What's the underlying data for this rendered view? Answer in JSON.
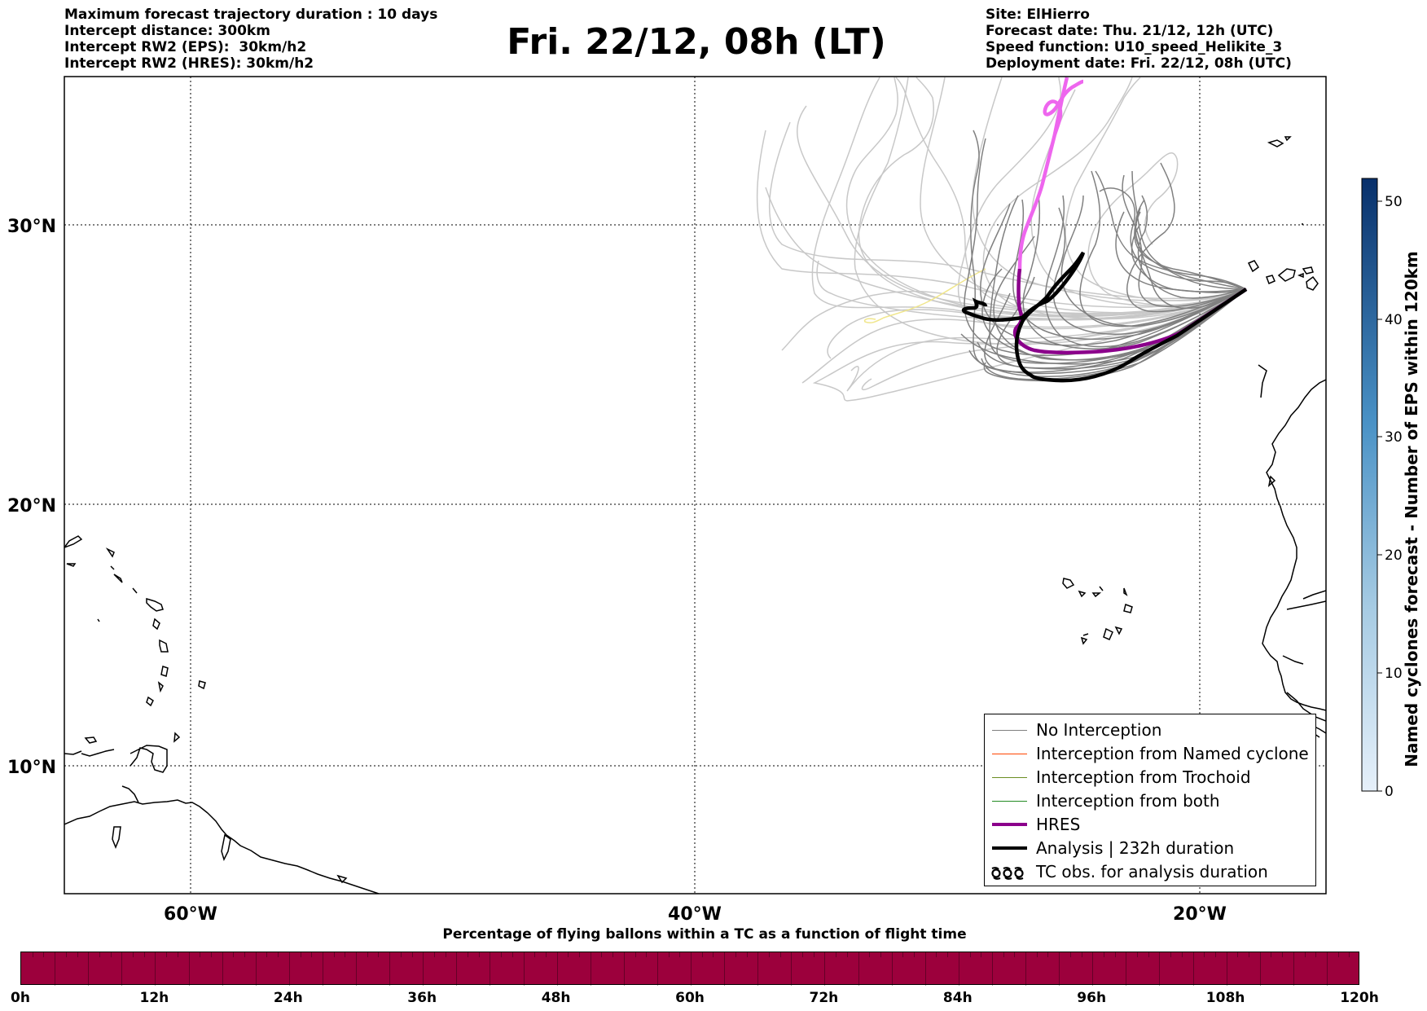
{
  "info_left": [
    "Maximum forecast trajectory duration : 10 days",
    "Intercept distance: 300km",
    "Intercept RW2 (EPS):  30km/h2",
    "Intercept RW2 (HRES): 30km/h2"
  ],
  "title": "Fri. 22/12, 08h (LT)",
  "info_right": [
    "Site: ElHierro",
    "Forecast date: Thu. 21/12, 12h (UTC)",
    "Speed function: U10_speed_Helikite_3",
    "Deployment date: Fri. 22/12, 08h (UTC)"
  ],
  "map": {
    "lat_labels": [
      "30°N",
      "20°N",
      "10°N"
    ],
    "lon_labels": [
      "60°W",
      "40°W",
      "20°W"
    ],
    "grid": "dotted",
    "trajectory_colors": {
      "no_interception": "#808080",
      "light_members": "#c8c8c8",
      "hres": "#8b008b",
      "hres_extension": "#ee66ee",
      "analysis": "#000000",
      "yellow_member": "#f0e68c"
    }
  },
  "legend": {
    "items": [
      {
        "label": "No Interception",
        "color": "#808080",
        "width": 1
      },
      {
        "label": "Interception from Named cyclone",
        "color": "#ff4500",
        "width": 1
      },
      {
        "label": "Interception from Trochoid",
        "color": "#6b8e23",
        "width": 1
      },
      {
        "label": "Interception from both",
        "color": "#228b22",
        "width": 1
      },
      {
        "label": "HRES",
        "color": "#8b008b",
        "width": 4
      },
      {
        "label": "Analysis | 232h duration",
        "color": "#000000",
        "width": 4
      },
      {
        "label": "TC obs. for analysis duration",
        "color": "#000000",
        "icon": "cyclone-symbols"
      }
    ]
  },
  "colorbar": {
    "title": "Named cyclones forecast - Number of EPS within 120km",
    "ticks": [
      "0",
      "10",
      "20",
      "30",
      "40",
      "50"
    ],
    "min": 0,
    "max": 52,
    "color_low": "#e6f0fa",
    "color_high": "#08306b"
  },
  "bottom_bar": {
    "caption": "Percentage of flying ballons within a TC as a function of flight time",
    "color": "#9c003c",
    "time_labels": [
      "0h",
      "12h",
      "24h",
      "36h",
      "48h",
      "60h",
      "72h",
      "84h",
      "96h",
      "108h",
      "120h"
    ]
  }
}
